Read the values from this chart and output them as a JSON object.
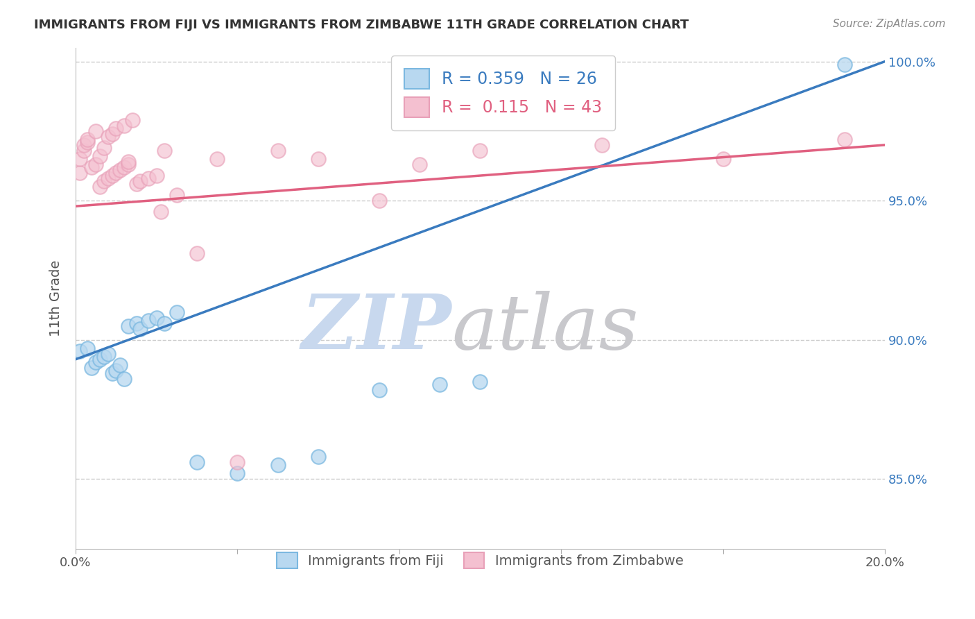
{
  "title": "IMMIGRANTS FROM FIJI VS IMMIGRANTS FROM ZIMBABWE 11TH GRADE CORRELATION CHART",
  "source": "Source: ZipAtlas.com",
  "ylabel": "11th Grade",
  "fiji_color": "#7bb8e0",
  "fiji_color_fill": "#b8d8f0",
  "zimbabwe_color_edge": "#e8a0b8",
  "zimbabwe_color_fill": "#f4c0d0",
  "fiji_line_color": "#3a7bbf",
  "zimbabwe_line_color": "#e06080",
  "fiji_R": 0.359,
  "fiji_N": 26,
  "zimbabwe_R": 0.115,
  "zimbabwe_N": 43,
  "xlim": [
    0.0,
    0.2
  ],
  "ylim": [
    0.825,
    1.005
  ],
  "x_ticks": [
    0.0,
    0.04,
    0.08,
    0.12,
    0.16,
    0.2
  ],
  "x_tick_labels": [
    "0.0%",
    "",
    "",
    "",
    "",
    "20.0%"
  ],
  "y_ticks": [
    0.85,
    0.9,
    0.95,
    1.0
  ],
  "y_tick_labels": [
    "85.0%",
    "90.0%",
    "95.0%",
    "100.0%"
  ],
  "fiji_scatter_x": [
    0.001,
    0.003,
    0.004,
    0.005,
    0.006,
    0.007,
    0.008,
    0.009,
    0.01,
    0.011,
    0.012,
    0.013,
    0.015,
    0.016,
    0.018,
    0.02,
    0.022,
    0.025,
    0.03,
    0.04,
    0.05,
    0.06,
    0.075,
    0.09,
    0.1,
    0.19
  ],
  "fiji_scatter_y": [
    0.896,
    0.897,
    0.89,
    0.892,
    0.893,
    0.894,
    0.895,
    0.888,
    0.889,
    0.891,
    0.886,
    0.905,
    0.906,
    0.904,
    0.907,
    0.908,
    0.906,
    0.91,
    0.856,
    0.852,
    0.855,
    0.858,
    0.882,
    0.884,
    0.885,
    0.999
  ],
  "zimbabwe_scatter_x": [
    0.001,
    0.001,
    0.002,
    0.002,
    0.003,
    0.003,
    0.004,
    0.005,
    0.005,
    0.006,
    0.006,
    0.007,
    0.007,
    0.008,
    0.008,
    0.009,
    0.009,
    0.01,
    0.01,
    0.011,
    0.012,
    0.012,
    0.013,
    0.013,
    0.014,
    0.015,
    0.016,
    0.018,
    0.02,
    0.021,
    0.022,
    0.025,
    0.03,
    0.035,
    0.04,
    0.05,
    0.06,
    0.075,
    0.085,
    0.1,
    0.13,
    0.16,
    0.19
  ],
  "zimbabwe_scatter_y": [
    0.96,
    0.965,
    0.968,
    0.97,
    0.971,
    0.972,
    0.962,
    0.963,
    0.975,
    0.955,
    0.966,
    0.957,
    0.969,
    0.958,
    0.973,
    0.959,
    0.974,
    0.96,
    0.976,
    0.961,
    0.962,
    0.977,
    0.963,
    0.964,
    0.979,
    0.956,
    0.957,
    0.958,
    0.959,
    0.946,
    0.968,
    0.952,
    0.931,
    0.965,
    0.856,
    0.968,
    0.965,
    0.95,
    0.963,
    0.968,
    0.97,
    0.965,
    0.972
  ],
  "background_color": "#ffffff",
  "grid_color": "#cccccc",
  "watermark_zip_color": "#c8d8ee",
  "watermark_atlas_color": "#c8c8cc"
}
